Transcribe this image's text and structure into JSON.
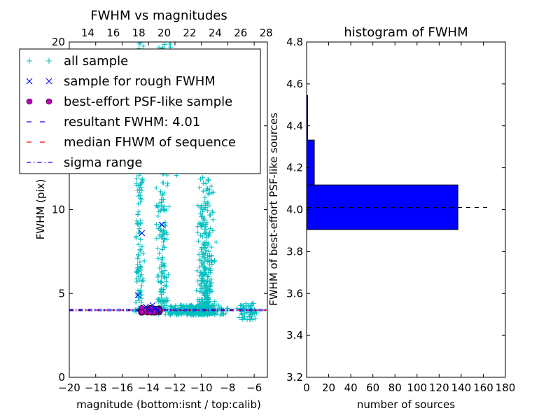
{
  "chart_data": [
    {
      "type": "scatter",
      "title": "FWHM vs magnitudes",
      "xlabel": "magnitude (bottom:isnt / top:calib)",
      "ylabel": "FWHM (pix)",
      "xlim": [
        -20,
        -5
      ],
      "ylim": [
        0,
        20
      ],
      "x_ticks": [
        -20,
        -18,
        -16,
        -14,
        -12,
        -10,
        -8,
        -6
      ],
      "y_ticks": [
        0,
        5,
        10,
        15,
        20
      ],
      "top_x_ticks": [
        14,
        16,
        18,
        20,
        22,
        24,
        26,
        28
      ],
      "top_xlim": [
        12.55,
        28.1
      ],
      "legend_position": "upper-left",
      "legend": [
        {
          "label": "all sample",
          "marker": "+",
          "color": "#00bfbf"
        },
        {
          "label": "sample for rough FWHM",
          "marker": "x",
          "color": "#0000ff"
        },
        {
          "label": "best-effort PSF-like sample",
          "marker": "o",
          "color": "#bf00bf"
        },
        {
          "label": "resultant FWHM: 4.01",
          "marker": "dashed",
          "color": "#0000ff"
        },
        {
          "label": "median FHWM of sequence",
          "marker": "dashed",
          "color": "#ff0000"
        },
        {
          "label": "sigma range",
          "marker": "dashdot",
          "color": "#0000ff"
        }
      ],
      "series": [
        {
          "name": "all sample",
          "clusters": [
            {
              "x_center": -14.7,
              "x_spread": 0.45,
              "y_min": 3.9,
              "y_max": 20,
              "count": 170,
              "y_skew": 1.3
            },
            {
              "x_center": -12.9,
              "x_spread": 0.6,
              "y_min": 4.5,
              "y_max": 20,
              "count": 200,
              "y_skew": 1.5
            },
            {
              "x_center": -9.7,
              "x_spread": 0.9,
              "y_min": 3.8,
              "y_max": 12,
              "count": 380,
              "y_skew": 2.6
            },
            {
              "x_center": -10.5,
              "x_spread": 3.5,
              "y_min": 3.7,
              "y_max": 4.3,
              "count": 300,
              "y_skew": 1
            },
            {
              "x_center": -6.5,
              "x_spread": 1.2,
              "y_min": 3.4,
              "y_max": 4.4,
              "count": 60,
              "y_skew": 1
            },
            {
              "x_center": -12.2,
              "x_spread": 0.8,
              "y_min": 12,
              "y_max": 20,
              "count": 40,
              "y_skew": 1
            }
          ]
        },
        {
          "name": "sample for rough FWHM",
          "points": [
            [
              -14.8,
              4.9
            ],
            [
              -14.5,
              8.6
            ],
            [
              -13.7,
              4.3
            ],
            [
              -13.5,
              4.1
            ],
            [
              -13.3,
              4.0
            ],
            [
              -13.0,
              9.1
            ],
            [
              -14.2,
              4.2
            ],
            [
              -13.9,
              4.0
            ]
          ]
        },
        {
          "name": "best-effort PSF-like sample",
          "x_range": [
            -14.6,
            -13.1
          ],
          "y_range": [
            3.85,
            4.15
          ],
          "count": 70
        }
      ],
      "lines": [
        {
          "name": "resultant FWHM: 4.01",
          "y": 4.01,
          "style": "dashed",
          "color": "#0000ff"
        },
        {
          "name": "median FHWM of sequence",
          "y": 4.0,
          "style": "dashed",
          "color": "#ff0000"
        },
        {
          "name": "sigma range",
          "y": [
            3.97,
            4.05
          ],
          "style": "dashdot",
          "color": "#0000ff"
        }
      ]
    },
    {
      "type": "bar",
      "orientation": "horizontal",
      "title": "histogram of FWHM",
      "xlabel": "number of sources",
      "ylabel": "FWHM of best-effort PSF-like sources",
      "xlim": [
        0,
        180
      ],
      "ylim": [
        3.2,
        4.8
      ],
      "x_ticks": [
        0,
        20,
        40,
        60,
        80,
        100,
        120,
        140,
        160,
        180
      ],
      "y_ticks": [
        3.2,
        3.4,
        3.6,
        3.8,
        4.0,
        4.2,
        4.4,
        4.6,
        4.8
      ],
      "bins": [
        {
          "y_low": 3.905,
          "y_high": 4.118,
          "count": 137
        },
        {
          "y_low": 4.118,
          "y_high": 4.332,
          "count": 7
        },
        {
          "y_low": 4.332,
          "y_high": 4.545,
          "count": 1
        }
      ],
      "reference_line": {
        "y": 4.01,
        "style": "dashed",
        "color": "#000000"
      },
      "bar_color": "#0000ff"
    }
  ]
}
